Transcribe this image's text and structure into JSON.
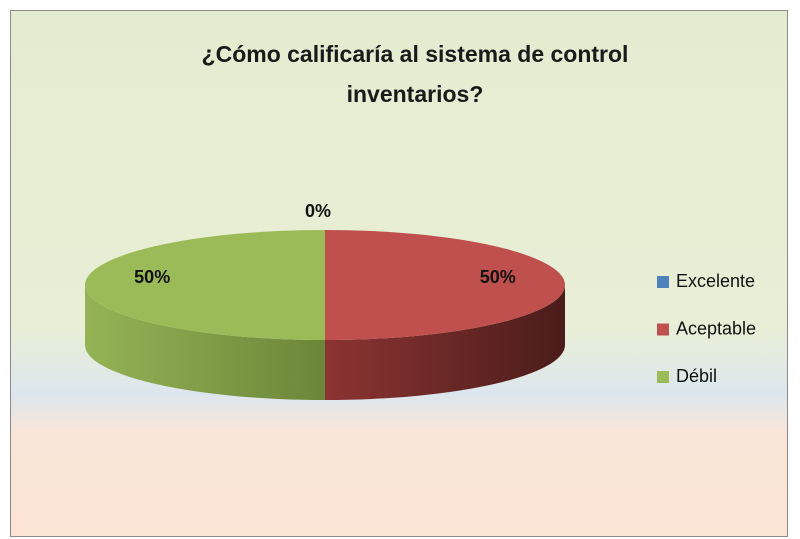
{
  "chart_data": {
    "type": "pie",
    "title": "¿Cómo calificaría al sistema de control inventarios?",
    "categories": [
      "Excelente",
      "Aceptable",
      "Débil"
    ],
    "values": [
      0,
      50,
      50
    ],
    "value_labels": [
      "0%",
      "50%",
      "50%"
    ],
    "colors": [
      "#4f81bd",
      "#c0504d",
      "#9bbb59"
    ],
    "legend": "right"
  }
}
